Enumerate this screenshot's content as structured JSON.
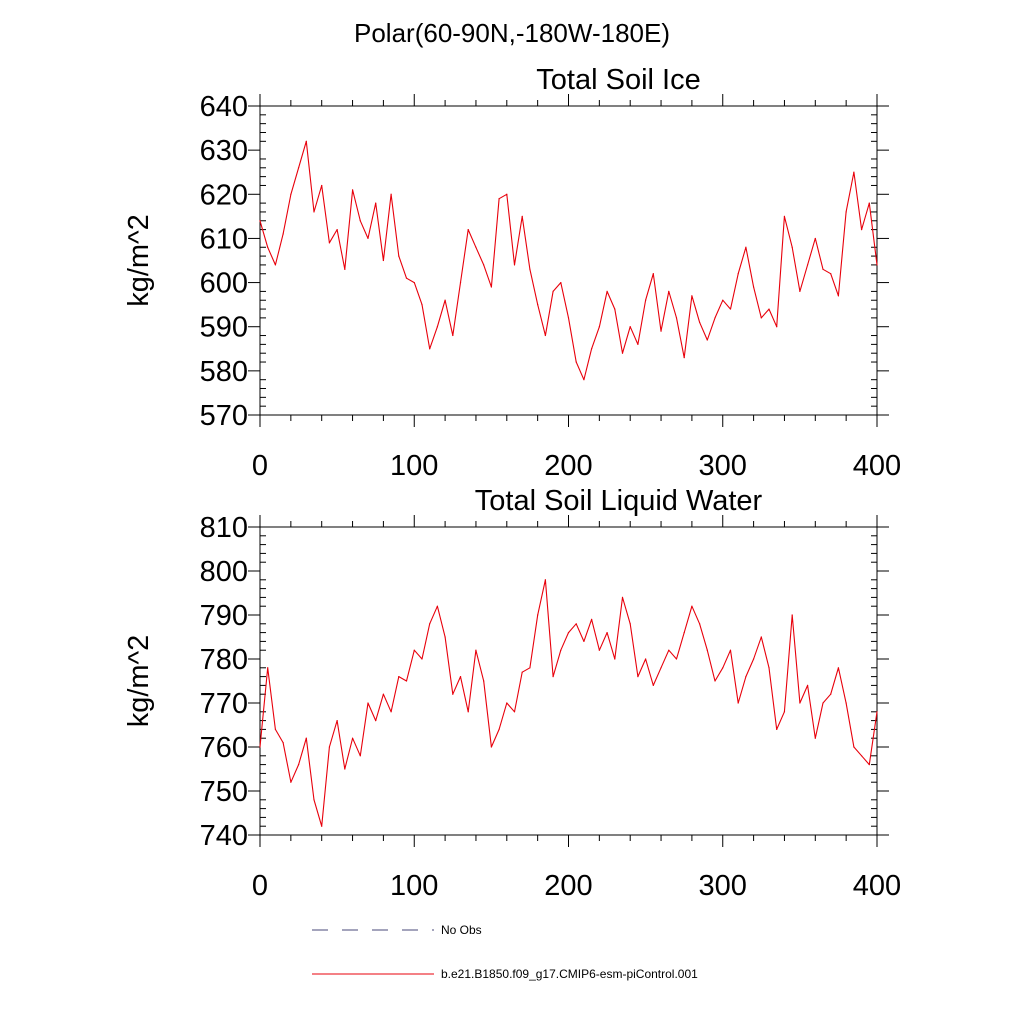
{
  "figure": {
    "suptitle": "Polar(60-90N,-180W-180E)"
  },
  "legend": {
    "entries": [
      {
        "label": "No Obs",
        "color": "#4a4a7a",
        "style": "dashed"
      },
      {
        "label": "b.e21.B1850.f09_g17.CMIP6-esm-piControl.001",
        "color": "#e8000b",
        "style": "solid"
      }
    ]
  },
  "chart_data": [
    {
      "type": "line",
      "title": "Total Soil Ice",
      "xlabel": "",
      "ylabel": "kg/m^2",
      "xlim": [
        0,
        400
      ],
      "ylim": [
        570,
        640
      ],
      "xticks": [
        0,
        100,
        200,
        300,
        400
      ],
      "yticks": [
        570,
        580,
        590,
        600,
        610,
        620,
        630,
        640
      ],
      "series": [
        {
          "name": "b.e21.B1850.f09_g17.CMIP6-esm-piControl.001",
          "color": "#e8000b",
          "x": [
            0,
            5,
            10,
            15,
            20,
            25,
            30,
            35,
            40,
            45,
            50,
            55,
            60,
            65,
            70,
            75,
            80,
            85,
            90,
            95,
            100,
            105,
            110,
            115,
            120,
            125,
            130,
            135,
            140,
            145,
            150,
            155,
            160,
            165,
            170,
            175,
            180,
            185,
            190,
            195,
            200,
            205,
            210,
            215,
            220,
            225,
            230,
            235,
            240,
            245,
            250,
            255,
            260,
            265,
            270,
            275,
            280,
            285,
            290,
            295,
            300,
            305,
            310,
            315,
            320,
            325,
            330,
            335,
            340,
            345,
            350,
            355,
            360,
            365,
            370,
            375,
            380,
            385,
            390,
            395,
            400
          ],
          "values": [
            614,
            608,
            604,
            611,
            620,
            626,
            632,
            616,
            622,
            609,
            612,
            603,
            621,
            614,
            610,
            618,
            605,
            620,
            606,
            601,
            600,
            595,
            585,
            590,
            596,
            588,
            600,
            612,
            608,
            604,
            599,
            619,
            620,
            604,
            615,
            603,
            595,
            588,
            598,
            600,
            592,
            582,
            578,
            585,
            590,
            598,
            594,
            584,
            590,
            586,
            596,
            602,
            589,
            598,
            592,
            583,
            597,
            591,
            587,
            592,
            596,
            594,
            602,
            608,
            599,
            592,
            594,
            590,
            615,
            608,
            598,
            604,
            610,
            603,
            602,
            597,
            616,
            625,
            612,
            618,
            604
          ]
        }
      ]
    },
    {
      "type": "line",
      "title": "Total Soil Liquid Water",
      "xlabel": "",
      "ylabel": "kg/m^2",
      "xlim": [
        0,
        400
      ],
      "ylim": [
        740,
        810
      ],
      "xticks": [
        0,
        100,
        200,
        300,
        400
      ],
      "yticks": [
        740,
        750,
        760,
        770,
        780,
        790,
        800,
        810
      ],
      "series": [
        {
          "name": "b.e21.B1850.f09_g17.CMIP6-esm-piControl.001",
          "color": "#e8000b",
          "x": [
            0,
            5,
            10,
            15,
            20,
            25,
            30,
            35,
            40,
            45,
            50,
            55,
            60,
            65,
            70,
            75,
            80,
            85,
            90,
            95,
            100,
            105,
            110,
            115,
            120,
            125,
            130,
            135,
            140,
            145,
            150,
            155,
            160,
            165,
            170,
            175,
            180,
            185,
            190,
            195,
            200,
            205,
            210,
            215,
            220,
            225,
            230,
            235,
            240,
            245,
            250,
            255,
            260,
            265,
            270,
            275,
            280,
            285,
            290,
            295,
            300,
            305,
            310,
            315,
            320,
            325,
            330,
            335,
            340,
            345,
            350,
            355,
            360,
            365,
            370,
            375,
            380,
            385,
            390,
            395,
            400
          ],
          "values": [
            760,
            778,
            764,
            761,
            752,
            756,
            762,
            748,
            742,
            760,
            766,
            755,
            762,
            758,
            770,
            766,
            772,
            768,
            776,
            775,
            782,
            780,
            788,
            792,
            785,
            772,
            776,
            768,
            782,
            775,
            760,
            764,
            770,
            768,
            777,
            778,
            790,
            798,
            776,
            782,
            786,
            788,
            784,
            789,
            782,
            786,
            780,
            794,
            788,
            776,
            780,
            774,
            778,
            782,
            780,
            786,
            792,
            788,
            782,
            775,
            778,
            782,
            770,
            776,
            780,
            785,
            778,
            764,
            768,
            790,
            770,
            774,
            762,
            770,
            772,
            778,
            770,
            760,
            758,
            756,
            768
          ]
        }
      ]
    }
  ]
}
